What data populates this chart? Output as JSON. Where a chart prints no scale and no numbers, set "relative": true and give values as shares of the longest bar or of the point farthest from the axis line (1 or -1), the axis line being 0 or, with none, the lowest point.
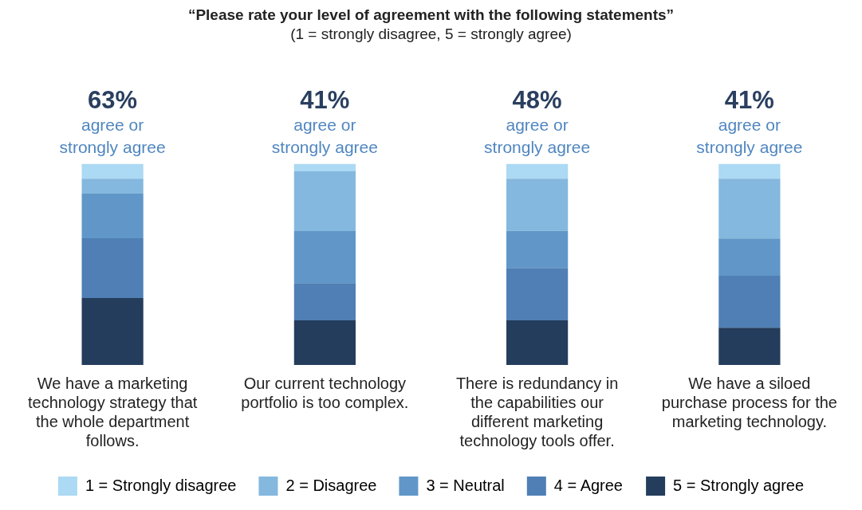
{
  "chart_data": {
    "type": "bar",
    "title": "“Please rate your level of agreement with the following statements”",
    "subtitle": "(1 = strongly disagree, 5 = strongly agree)",
    "categories": [
      "We have a marketing technology strategy that the whole department follows.",
      "Our current technology portfolio is too complex.",
      "There is redundancy in the capabilities our different marketing technology tools offer.",
      "We have a siloed purchase process for the marketing technology."
    ],
    "stacked": true,
    "relative": true,
    "legend": "bottom",
    "series": [
      {
        "name": "5 = Strongly agree",
        "color": "#243d5c",
        "values": [
          0.333,
          0.222,
          0.222,
          0.185
        ]
      },
      {
        "name": "4 = Agree",
        "color": "#4f7fb4",
        "values": [
          0.297,
          0.185,
          0.26,
          0.259
        ]
      },
      {
        "name": "3 = Neutral",
        "color": "#6097c8",
        "values": [
          0.222,
          0.259,
          0.185,
          0.185
        ]
      },
      {
        "name": "2 = Disagree",
        "color": "#84b8de",
        "values": [
          0.074,
          0.297,
          0.259,
          0.297
        ]
      },
      {
        "name": "1 = Strongly disagree",
        "color": "#acd9f3",
        "values": [
          0.074,
          0.037,
          0.074,
          0.074
        ]
      }
    ],
    "annotations": [
      "63%",
      "agree or strongly agree",
      "41%",
      "agree or strongly agree",
      "48%",
      "agree or strongly agree",
      "41%",
      "agree or strongly agree"
    ]
  }
}
